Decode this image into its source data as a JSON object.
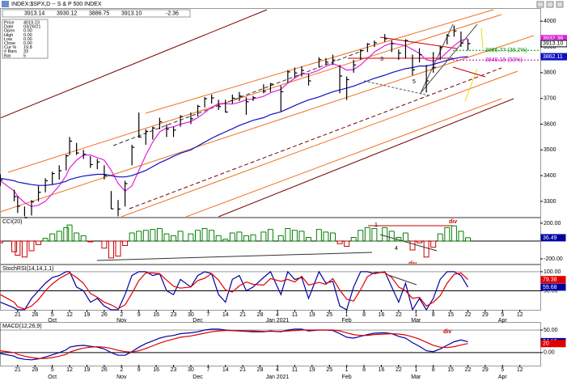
{
  "chart_data": [
    {
      "type": "ohlc",
      "title": "INDEX:$SPX,D -- S & P 500 INDEX",
      "header_values": [
        "3913.14",
        "3930.12",
        "3886.75",
        "3913.10",
        "-2.36"
      ],
      "info": [
        {
          "label": "Price",
          "value": "4019.23"
        },
        {
          "label": "Date",
          "value": "03/26/21"
        },
        {
          "label": "Open",
          "value": "0.00"
        },
        {
          "label": "High",
          "value": "0.00"
        },
        {
          "label": "Low",
          "value": "0.00"
        },
        {
          "label": "Close",
          "value": "0.00"
        },
        {
          "label": "Cur %",
          "value": "19.8"
        },
        {
          "label": "# Bars",
          "value": "33"
        },
        {
          "label": "Bar",
          "value": "5"
        }
      ],
      "x": [
        -5,
        -1,
        0,
        2,
        4,
        6,
        8,
        10,
        12,
        14,
        15,
        17,
        19,
        21,
        23,
        25,
        27,
        29,
        31,
        33,
        35,
        37,
        39,
        41,
        43,
        45,
        47,
        50,
        52,
        54,
        56,
        58,
        60,
        62,
        64,
        66,
        68,
        71,
        73,
        76,
        78,
        80,
        82,
        84,
        87,
        89,
        91,
        93,
        95,
        97,
        99,
        101,
        103,
        106,
        108,
        110,
        112,
        114,
        116,
        118,
        120,
        122,
        124,
        126,
        128,
        130
      ],
      "high": [
        3405,
        3345,
        3320,
        3280,
        3305,
        3360,
        3390,
        3415,
        3440,
        3482,
        3550,
        3527,
        3500,
        3476,
        3465,
        3440,
        3340,
        3305,
        3380,
        3520,
        3645,
        3580,
        3590,
        3625,
        3600,
        3590,
        3635,
        3645,
        3675,
        3705,
        3715,
        3695,
        3695,
        3715,
        3725,
        3705,
        3710,
        3755,
        3760,
        3750,
        3810,
        3820,
        3825,
        3795,
        3860,
        3857,
        3870,
        3830,
        3785,
        3850,
        3890,
        3915,
        3925,
        3950,
        3925,
        3890,
        3930,
        3870,
        3895,
        3830,
        3880,
        3905,
        3950,
        3983,
        3960,
        3930.12
      ],
      "low": [
        3360,
        3300,
        3255,
        3242,
        3245,
        3300,
        3335,
        3365,
        3385,
        3420,
        3480,
        3480,
        3465,
        3430,
        3425,
        3385,
        3270,
        3242,
        3280,
        3440,
        3547,
        3520,
        3540,
        3580,
        3550,
        3550,
        3590,
        3600,
        3630,
        3665,
        3680,
        3655,
        3645,
        3680,
        3690,
        3636,
        3690,
        3720,
        3725,
        3650,
        3760,
        3780,
        3785,
        3750,
        3820,
        3830,
        3830,
        3720,
        3694,
        3800,
        3850,
        3880,
        3900,
        3920,
        3880,
        3850,
        3855,
        3790,
        3840,
        3723,
        3800,
        3850,
        3910,
        3940,
        3900,
        3886.75
      ],
      "close": [
        3383,
        3319,
        3281,
        3237,
        3298,
        3335,
        3380,
        3408,
        3419,
        3477,
        3534,
        3488,
        3483,
        3443,
        3453,
        3400,
        3271,
        3270,
        3369,
        3510,
        3550,
        3572,
        3585,
        3609,
        3581,
        3577,
        3629,
        3621,
        3669,
        3699,
        3702,
        3668,
        3647,
        3701,
        3709,
        3687,
        3703,
        3727,
        3756,
        3726,
        3803,
        3799,
        3809,
        3768,
        3851,
        3841,
        3849,
        3787,
        3773,
        3830,
        3886,
        3911,
        3916,
        3932,
        3913,
        3876,
        3925,
        3811,
        3870,
        3768,
        3821,
        3898,
        3943,
        3962,
        3915,
        3913.1
      ],
      "close_label": "3913.10",
      "bar_color": "#000000",
      "series": [
        {
          "color": "#e020e0",
          "values": [
            3380,
            3340,
            3320,
            3295,
            3280,
            3285,
            3300,
            3330,
            3360,
            3400,
            3430,
            3460,
            3480,
            3480,
            3470,
            3460,
            3420,
            3370,
            3340,
            3360,
            3420,
            3480,
            3530,
            3570,
            3585,
            3590,
            3600,
            3610,
            3625,
            3645,
            3665,
            3680,
            3680,
            3678,
            3685,
            3695,
            3698,
            3708,
            3722,
            3735,
            3760,
            3778,
            3795,
            3795,
            3810,
            3825,
            3835,
            3825,
            3810,
            3812,
            3830,
            3855,
            3880,
            3905,
            3915,
            3910,
            3905,
            3890,
            3875,
            3850,
            3845,
            3855,
            3880,
            3905,
            3925,
            3932.36
          ]
        },
        {
          "color": "#1010c0",
          "values": [
            3390,
            3380,
            3375,
            3370,
            3365,
            3362,
            3362,
            3365,
            3370,
            3378,
            3385,
            3392,
            3398,
            3402,
            3405,
            3405,
            3400,
            3395,
            3395,
            3400,
            3410,
            3420,
            3435,
            3450,
            3462,
            3475,
            3487,
            3500,
            3515,
            3530,
            3545,
            3558,
            3570,
            3582,
            3595,
            3605,
            3615,
            3625,
            3637,
            3648,
            3660,
            3672,
            3684,
            3694,
            3706,
            3716,
            3726,
            3733,
            3740,
            3748,
            3758,
            3768,
            3778,
            3790,
            3800,
            3808,
            3816,
            3820,
            3826,
            3826,
            3832,
            3840,
            3848,
            3855,
            3860,
            3862.11
          ]
        }
      ],
      "levels": [
        {
          "value": 3886.77,
          "label": "3886.77 (38.2%)",
          "color": "#009000"
        },
        {
          "value": 3849.19,
          "label": "3849.19 (50%)",
          "color": "#c000c0"
        }
      ],
      "annotations": [
        "3",
        "5"
      ],
      "xlim": [
        -5.1,
        150.9
      ],
      "ylim": [
        3240,
        4051
      ],
      "yticks": [
        3300,
        3400,
        3500,
        3600,
        3700,
        3800,
        3900,
        4000
      ],
      "xticks": [
        {
          "value": 0,
          "label": "21"
        },
        {
          "value": 5,
          "label": "28"
        },
        {
          "value": 10,
          "label": "5"
        },
        {
          "value": 15,
          "label": "12"
        },
        {
          "value": 20,
          "label": "19"
        },
        {
          "value": 25,
          "label": "26"
        },
        {
          "value": 30,
          "label": "2"
        },
        {
          "value": 35,
          "label": "9"
        },
        {
          "value": 40,
          "label": "16"
        },
        {
          "value": 45,
          "label": "23"
        },
        {
          "value": 50,
          "label": "30"
        },
        {
          "value": 55,
          "label": "7"
        },
        {
          "value": 60,
          "label": "14"
        },
        {
          "value": 65,
          "label": "21"
        },
        {
          "value": 70,
          "label": "28"
        },
        {
          "value": 75,
          "label": "4"
        },
        {
          "value": 80,
          "label": "11"
        },
        {
          "value": 85,
          "label": "19"
        },
        {
          "value": 90,
          "label": "25"
        },
        {
          "value": 95,
          "label": "1"
        },
        {
          "value": 100,
          "label": "8"
        },
        {
          "value": 105,
          "label": "16"
        },
        {
          "value": 110,
          "label": "22"
        },
        {
          "value": 115,
          "label": "1"
        },
        {
          "value": 120,
          "label": "8"
        },
        {
          "value": 125,
          "label": "15"
        },
        {
          "value": 130,
          "label": "22"
        },
        {
          "value": 135,
          "label": "29"
        },
        {
          "value": 140,
          "label": "5"
        },
        {
          "value": 145,
          "label": "12"
        }
      ],
      "months": [
        {
          "value": 10,
          "label": "Oct"
        },
        {
          "value": 30,
          "label": "Nov"
        },
        {
          "value": 52,
          "label": "Dec"
        },
        {
          "value": 75,
          "label": "Jan 2021"
        },
        {
          "value": 95,
          "label": "Feb"
        },
        {
          "value": 115,
          "label": "Mar"
        },
        {
          "value": 140,
          "label": "Apr"
        }
      ]
    },
    {
      "type": "histogram",
      "title": "CCI(20)",
      "color": "#008000",
      "negative_color": "#cc0000",
      "values": [
        -20,
        -120,
        -160,
        -180,
        -110,
        -40,
        30,
        80,
        110,
        150,
        180,
        90,
        60,
        -10,
        0,
        -80,
        -190,
        -170,
        -50,
        90,
        110,
        120,
        130,
        140,
        80,
        60,
        110,
        80,
        120,
        140,
        120,
        60,
        20,
        90,
        100,
        60,
        70,
        100,
        130,
        60,
        140,
        120,
        110,
        40,
        130,
        100,
        90,
        -30,
        -60,
        40,
        120,
        150,
        140,
        150,
        110,
        40,
        90,
        -100,
        -20,
        -180,
        -70,
        80,
        150,
        170,
        110,
        36.49
      ],
      "annotations": [
        "1",
        "4",
        "div",
        "div"
      ],
      "ylim": [
        -255,
        263
      ],
      "yticks": [
        {
          "value": 200,
          "label": "200.00"
        },
        {
          "value": -200,
          "label": "-200.00"
        }
      ]
    },
    {
      "type": "line",
      "title": "StochRSI(14,14,1,1)",
      "series": [
        {
          "color": "#0000a0",
          "values": [
            20,
            5,
            0,
            0,
            30,
            50,
            70,
            85,
            90,
            100,
            100,
            60,
            50,
            20,
            30,
            10,
            0,
            0,
            40,
            90,
            100,
            100,
            90,
            95,
            50,
            40,
            80,
            60,
            90,
            100,
            95,
            40,
            20,
            80,
            90,
            50,
            60,
            85,
            100,
            40,
            100,
            80,
            85,
            30,
            100,
            70,
            75,
            10,
            0,
            60,
            100,
            100,
            95,
            100,
            60,
            20,
            70,
            0,
            30,
            0,
            30,
            80,
            100,
            100,
            90,
            59.68
          ]
        },
        {
          "color": "#e00000",
          "values": [
            40,
            20,
            8,
            2,
            10,
            27,
            50,
            68,
            82,
            92,
            97,
            85,
            70,
            43,
            33,
            20,
            13,
            3,
            13,
            43,
            77,
            97,
            97,
            95,
            78,
            62,
            57,
            60,
            77,
            83,
            95,
            78,
            52,
            47,
            63,
            73,
            67,
            65,
            82,
            75,
            80,
            73,
            88,
            65,
            72,
            67,
            82,
            52,
            28,
            23,
            53,
            87,
            98,
            98,
            85,
            60,
            50,
            30,
            33,
            10,
            20,
            37,
            70,
            93,
            97,
            79.38
          ]
        }
      ],
      "ylim": [
        0,
        119
      ],
      "yticks": [
        {
          "value": 100,
          "label": "100.00"
        },
        {
          "value": 50,
          "label": "50.00"
        }
      ]
    },
    {
      "type": "line",
      "title": "MACD(12,26,9)",
      "series": [
        {
          "color": "#0000a0",
          "values": [
            -2,
            -8,
            -12,
            -15,
            -16,
            -14,
            -10,
            -5,
            0,
            6,
            12,
            15,
            16,
            14,
            12,
            8,
            0,
            -6,
            -6,
            2,
            12,
            20,
            26,
            32,
            36,
            38,
            42,
            44,
            46,
            50,
            52,
            52,
            50,
            49,
            48,
            47,
            46,
            46,
            48,
            46,
            50,
            52,
            52,
            48,
            50,
            50,
            49,
            42,
            34,
            32,
            36,
            40,
            43,
            44,
            42,
            36,
            32,
            22,
            14,
            4,
            2,
            8,
            16,
            24,
            28,
            24.18
          ]
        },
        {
          "color": "#e00000",
          "values": [
            4,
            0,
            -4,
            -8,
            -11,
            -13,
            -13,
            -11,
            -8,
            -4,
            1,
            6,
            10,
            12,
            13,
            12,
            9,
            5,
            2,
            1,
            4,
            9,
            15,
            21,
            26,
            30,
            34,
            37,
            40,
            43,
            46,
            48,
            49,
            49,
            49,
            48,
            48,
            47,
            47,
            47,
            48,
            49,
            50,
            50,
            50,
            50,
            50,
            48,
            44,
            40,
            38,
            38,
            40,
            41,
            42,
            41,
            39,
            35,
            30,
            23,
            16,
            12,
            11,
            13,
            17,
            20
          ]
        }
      ],
      "annotations": [
        "div"
      ],
      "ylim": [
        -29,
        68
      ],
      "yticks": [
        {
          "value": 50,
          "label": "50.00"
        },
        {
          "value": 0,
          "label": "0.00"
        }
      ]
    }
  ]
}
